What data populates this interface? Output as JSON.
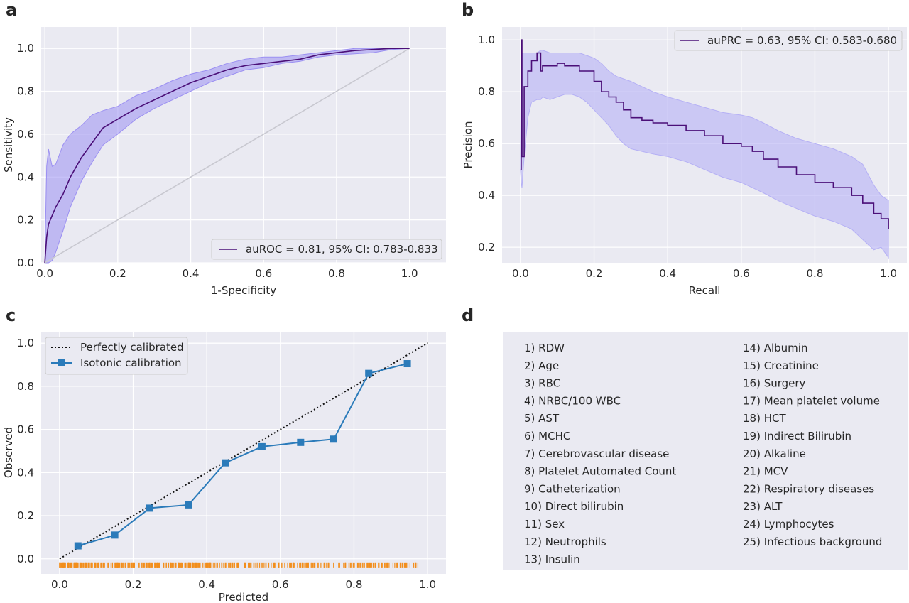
{
  "chart_data": [
    {
      "panel": "a",
      "type": "line",
      "xlabel": "1-Specificity",
      "ylabel": "Sensitivity",
      "xlim": [
        -0.01,
        1.1
      ],
      "ylim": [
        0.0,
        1.1
      ],
      "xticks": [
        "0.0",
        "0.2",
        "0.4",
        "0.6",
        "0.8",
        "1.0"
      ],
      "yticks": [
        "0.0",
        "0.2",
        "0.4",
        "0.6",
        "0.8",
        "1.0"
      ],
      "legend": "auROC = 0.81, 95% CI: 0.783-0.833",
      "legend_position": "lower-right",
      "grid": true,
      "colors": {
        "line": "#4b0f78",
        "band": "#9b8ff2",
        "diagonal": "#c8c8d0"
      },
      "diagonal": {
        "x": [
          0,
          1
        ],
        "y": [
          0,
          1
        ]
      },
      "series": [
        {
          "x": [
            0.0,
            0.005,
            0.01,
            0.02,
            0.03,
            0.05,
            0.07,
            0.1,
            0.13,
            0.16,
            0.2,
            0.25,
            0.3,
            0.35,
            0.4,
            0.45,
            0.5,
            0.55,
            0.6,
            0.65,
            0.7,
            0.75,
            0.8,
            0.85,
            0.9,
            0.95,
            1.0
          ],
          "y": [
            0.0,
            0.12,
            0.18,
            0.22,
            0.26,
            0.32,
            0.4,
            0.49,
            0.56,
            0.63,
            0.67,
            0.72,
            0.76,
            0.8,
            0.84,
            0.87,
            0.9,
            0.92,
            0.93,
            0.94,
            0.95,
            0.97,
            0.98,
            0.99,
            0.995,
            1.0,
            1.0
          ],
          "lower": [
            0.0,
            0.0,
            0.0,
            0.01,
            0.05,
            0.15,
            0.26,
            0.38,
            0.47,
            0.55,
            0.6,
            0.67,
            0.72,
            0.76,
            0.8,
            0.84,
            0.87,
            0.9,
            0.91,
            0.93,
            0.94,
            0.96,
            0.97,
            0.975,
            0.98,
            0.995,
            1.0
          ],
          "upper": [
            0.0,
            0.45,
            0.53,
            0.45,
            0.46,
            0.55,
            0.6,
            0.64,
            0.69,
            0.71,
            0.73,
            0.78,
            0.81,
            0.85,
            0.88,
            0.9,
            0.93,
            0.95,
            0.96,
            0.96,
            0.97,
            0.98,
            0.99,
            1.0,
            1.0,
            1.0,
            1.0
          ]
        }
      ]
    },
    {
      "panel": "b",
      "type": "line",
      "xlabel": "Recall",
      "ylabel": "Precision",
      "xlim": [
        -0.05,
        1.05
      ],
      "ylim": [
        0.14,
        1.05
      ],
      "xticks": [
        "0.0",
        "0.2",
        "0.4",
        "0.6",
        "0.8",
        "1.0"
      ],
      "yticks": [
        "0.2",
        "0.4",
        "0.6",
        "0.8",
        "1.0"
      ],
      "legend": "auPRC = 0.63, 95% CI: 0.583-0.680",
      "legend_position": "upper-right",
      "grid": true,
      "colors": {
        "line": "#4b0f78",
        "band": "#b5b0f5"
      },
      "series": [
        {
          "x": [
            0.0,
            0.002,
            0.004,
            0.01,
            0.02,
            0.03,
            0.045,
            0.055,
            0.06,
            0.08,
            0.1,
            0.12,
            0.14,
            0.16,
            0.18,
            0.2,
            0.22,
            0.24,
            0.26,
            0.28,
            0.3,
            0.33,
            0.36,
            0.4,
            0.45,
            0.5,
            0.55,
            0.6,
            0.63,
            0.66,
            0.7,
            0.75,
            0.8,
            0.85,
            0.9,
            0.93,
            0.96,
            0.98,
            1.0
          ],
          "y": [
            0.5,
            1.0,
            0.55,
            0.82,
            0.88,
            0.92,
            0.95,
            0.88,
            0.9,
            0.9,
            0.91,
            0.9,
            0.9,
            0.88,
            0.88,
            0.84,
            0.8,
            0.78,
            0.76,
            0.73,
            0.7,
            0.69,
            0.68,
            0.67,
            0.65,
            0.63,
            0.6,
            0.59,
            0.57,
            0.54,
            0.51,
            0.48,
            0.45,
            0.43,
            0.4,
            0.37,
            0.33,
            0.31,
            0.27
          ],
          "lower": [
            0.5,
            0.45,
            0.43,
            0.55,
            0.7,
            0.76,
            0.77,
            0.77,
            0.78,
            0.77,
            0.78,
            0.79,
            0.79,
            0.78,
            0.76,
            0.73,
            0.7,
            0.67,
            0.63,
            0.6,
            0.58,
            0.57,
            0.56,
            0.55,
            0.53,
            0.5,
            0.47,
            0.45,
            0.43,
            0.41,
            0.38,
            0.35,
            0.32,
            0.3,
            0.27,
            0.23,
            0.19,
            0.2,
            0.16
          ],
          "upper": [
            0.5,
            1.0,
            0.95,
            0.95,
            0.95,
            0.95,
            0.95,
            0.96,
            0.96,
            0.95,
            0.95,
            0.95,
            0.95,
            0.95,
            0.94,
            0.93,
            0.91,
            0.88,
            0.86,
            0.85,
            0.84,
            0.82,
            0.8,
            0.78,
            0.76,
            0.74,
            0.72,
            0.71,
            0.7,
            0.68,
            0.65,
            0.62,
            0.6,
            0.58,
            0.55,
            0.52,
            0.44,
            0.4,
            0.38
          ]
        }
      ]
    },
    {
      "panel": "c",
      "type": "line",
      "xlabel": "Predicted",
      "ylabel": "Observed",
      "xlim": [
        -0.05,
        1.05
      ],
      "ylim": [
        -0.07,
        1.05
      ],
      "xticks": [
        "0.0",
        "0.2",
        "0.4",
        "0.6",
        "0.8",
        "1.0"
      ],
      "yticks": [
        "0.0",
        "0.2",
        "0.4",
        "0.6",
        "0.8",
        "1.0"
      ],
      "legend_position": "upper-left",
      "grid": true,
      "colors": {
        "perfect": "#111111",
        "isotonic": "#2b7bba",
        "rug": "#f28e1c"
      },
      "series": [
        {
          "name": "Perfectly calibrated",
          "x": [
            0,
            1
          ],
          "y": [
            0,
            1
          ]
        },
        {
          "name": "Isotonic calibration",
          "x": [
            0.05,
            0.15,
            0.245,
            0.35,
            0.45,
            0.55,
            0.655,
            0.745,
            0.84,
            0.945
          ],
          "y": [
            0.06,
            0.11,
            0.235,
            0.25,
            0.445,
            0.52,
            0.54,
            0.555,
            0.86,
            0.905
          ]
        }
      ],
      "rug": {
        "x_range": [
          0.0,
          0.98
        ],
        "y": -0.03
      }
    }
  ],
  "panels": {
    "a": "a",
    "b": "b",
    "c": "c",
    "d": "d"
  },
  "features": {
    "left": [
      "1) RDW",
      "2) Age",
      "3) RBC",
      "4) NRBC/100 WBC",
      "5) AST",
      "6) MCHC",
      "7) Cerebrovascular disease",
      "8) Platelet Automated Count",
      "9) Catheterization",
      "10) Direct bilirubin",
      "11) Sex",
      "12) Neutrophils",
      "13) Insulin"
    ],
    "right": [
      "14) Albumin",
      "15) Creatinine",
      "16) Surgery",
      "17) Mean platelet volume",
      "18) HCT",
      "19) Indirect Bilirubin",
      "20) Alkaline",
      "21) MCV",
      "22) Respiratory diseases",
      "23) ALT",
      "24) Lymphocytes",
      "25) Infectious background"
    ]
  }
}
